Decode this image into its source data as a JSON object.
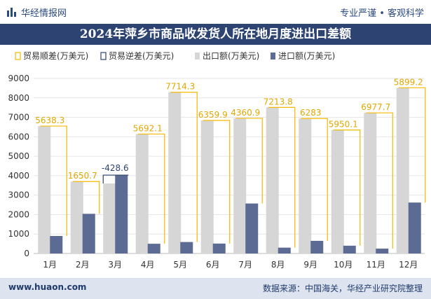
{
  "header": {
    "brand": "华经情报网",
    "tagline": "专业严谨 • 客观科学",
    "logo_icon": "bar-chart-logo-icon"
  },
  "footer": {
    "website": "www.huaon.com",
    "source": "数据来源：中国海关，华经产业研究院整理"
  },
  "chart_data": {
    "type": "bar",
    "title": "2024年萍乡市商品收发货人所在地月度进出口差额",
    "categories": [
      "1月",
      "2月",
      "3月",
      "4月",
      "5月",
      "6月",
      "7月",
      "8月",
      "9月",
      "10月",
      "11月",
      "12月"
    ],
    "ylim": [
      0,
      9000
    ],
    "yticks": [
      0,
      1000,
      2000,
      3000,
      4000,
      5000,
      6000,
      7000,
      8000,
      9000
    ],
    "legend_position": "top",
    "series": [
      {
        "name": "贸易顺差(万美元)",
        "kind": "outline",
        "color": "#f5b800",
        "values": [
          5638.3,
          1650.7,
          null,
          5692.1,
          7714.3,
          6359.9,
          4360.9,
          7213.8,
          6283,
          5950.1,
          6977.7,
          5899.2
        ]
      },
      {
        "name": "贸易逆差(万美元)",
        "kind": "outline",
        "color": "#2d4372",
        "values": [
          null,
          null,
          -428.6,
          null,
          null,
          null,
          null,
          null,
          null,
          null,
          null,
          null
        ]
      },
      {
        "name": "出口额(万美元)",
        "kind": "bar",
        "color": "#d6d6d6",
        "values": [
          6550,
          3700,
          3600,
          6140,
          8290,
          6840,
          6950,
          7510,
          6940,
          6350,
          7230,
          8520
        ]
      },
      {
        "name": "进口额(万美元)",
        "kind": "bar",
        "color": "#5b6b94",
        "values": [
          900,
          2040,
          4030,
          500,
          590,
          510,
          2570,
          300,
          650,
          400,
          250,
          2620
        ]
      }
    ],
    "data_labels": [
      "5638.3",
      "1650.7",
      "-428.6",
      "5692.1",
      "7714.3",
      "6359.9",
      "4360.9",
      "7213.8",
      "6283",
      "5950.1",
      "6977.7",
      "5899.2"
    ],
    "label_colors": {
      "surplus": "#e0a800",
      "deficit": "#2d4372",
      "axis": "#333333",
      "grid": "#e6e6e6"
    }
  }
}
